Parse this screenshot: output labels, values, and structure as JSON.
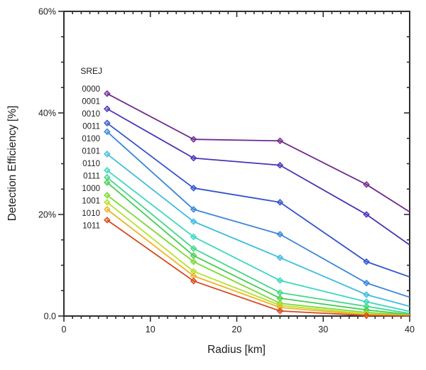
{
  "chart_data": {
    "type": "line",
    "title": "",
    "xlabel": "Radius [km]",
    "ylabel": "Detection Efficiency [%]",
    "legend_title": "SREJ",
    "legend_position": "inside-top-left",
    "grid": false,
    "xlim": [
      0,
      40
    ],
    "ylim": [
      0,
      60
    ],
    "xticks": {
      "major": [
        0,
        10,
        20,
        30,
        40
      ],
      "minor_step": 1,
      "labels": [
        "0",
        "10",
        "20",
        "30",
        "40"
      ]
    },
    "yticks": {
      "major": [
        0,
        20,
        40,
        60
      ],
      "minor_step": 5,
      "labels": [
        "0.0",
        "20%",
        "40%",
        "60%"
      ]
    },
    "x": [
      5,
      15,
      25,
      35,
      40
    ],
    "marker_x": [
      5,
      15,
      25,
      35
    ],
    "marker_shape": "diamond",
    "series": [
      {
        "name": "0000",
        "color": "#702B8E",
        "values": [
          43.8,
          34.8,
          34.5,
          25.9,
          20.5
        ]
      },
      {
        "name": "0001",
        "color": "#4B33B8",
        "values": [
          40.8,
          31.1,
          29.7,
          20.0,
          14.0
        ]
      },
      {
        "name": "0010",
        "color": "#3355CC",
        "values": [
          38.0,
          25.2,
          22.4,
          10.7,
          7.7
        ]
      },
      {
        "name": "0011",
        "color": "#3A85D9",
        "values": [
          36.3,
          21.0,
          16.1,
          6.5,
          3.7
        ]
      },
      {
        "name": "0100",
        "color": "#40BCE0",
        "values": [
          31.9,
          18.6,
          11.5,
          4.2,
          1.9
        ]
      },
      {
        "name": "0101",
        "color": "#3CD8C0",
        "values": [
          28.7,
          15.6,
          7.0,
          2.8,
          0.9
        ]
      },
      {
        "name": "0110",
        "color": "#43D88C",
        "values": [
          27.3,
          13.3,
          4.6,
          1.9,
          0.5
        ]
      },
      {
        "name": "0111",
        "color": "#46CE4E",
        "values": [
          26.3,
          11.9,
          3.5,
          1.2,
          0.3
        ]
      },
      {
        "name": "1000",
        "color": "#7ED836",
        "values": [
          23.8,
          10.7,
          2.5,
          0.7,
          0.2
        ]
      },
      {
        "name": "1001",
        "color": "#B8E028",
        "values": [
          22.4,
          8.8,
          2.1,
          0.4,
          0.1
        ]
      },
      {
        "name": "1010",
        "color": "#EDB32A",
        "values": [
          21.0,
          7.9,
          1.7,
          0.2,
          0.1
        ]
      },
      {
        "name": "1011",
        "color": "#D6491E",
        "values": [
          18.9,
          6.9,
          1.0,
          0.1,
          0.0
        ]
      }
    ]
  }
}
